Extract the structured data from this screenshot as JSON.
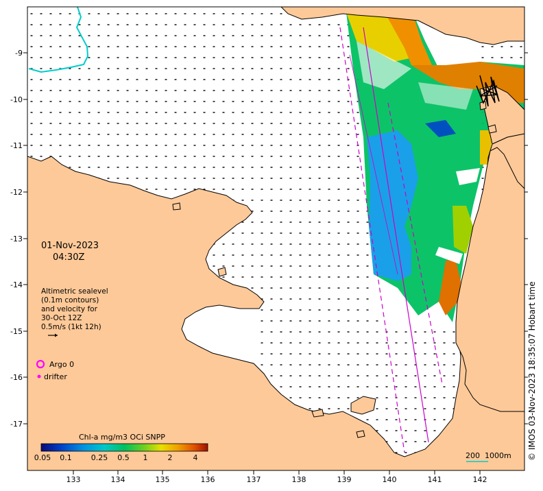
{
  "map": {
    "date": "01-Nov-2023",
    "time": "04:30Z",
    "legend_text": [
      "Altimetric sealevel",
      "(0.1m contours)",
      "and velocity for",
      "30-Oct 12Z",
      "0.5m/s (1kt 12h)"
    ],
    "markers": {
      "argo_label": "Argo 0",
      "drifter_label": "drifter",
      "argo_color": "#ff00ff",
      "drifter_color": "#ff00ff"
    },
    "colorbar": {
      "title": "Chl-a mg/m3 OCi SNPP",
      "ticks": [
        "0.05",
        "0.1",
        "0.25",
        "0.5",
        "1",
        "2",
        "4"
      ]
    },
    "scale_bar_label": "200  1000m",
    "credit": "© IMOS 03-Nov-2023 18:35:07 Hobart time",
    "x_ticks": [
      "133",
      "134",
      "135",
      "136",
      "137",
      "138",
      "139",
      "140",
      "141",
      "142"
    ],
    "y_ticks": [
      "-9",
      "-10",
      "-11",
      "-12",
      "-13",
      "-14",
      "-15",
      "-16",
      "-17"
    ],
    "colors": {
      "land": "#fdc998",
      "sea": "#ffffff",
      "coast": "#000000",
      "track": "#cc00cc",
      "contour_cyan": "#00cccc"
    }
  }
}
